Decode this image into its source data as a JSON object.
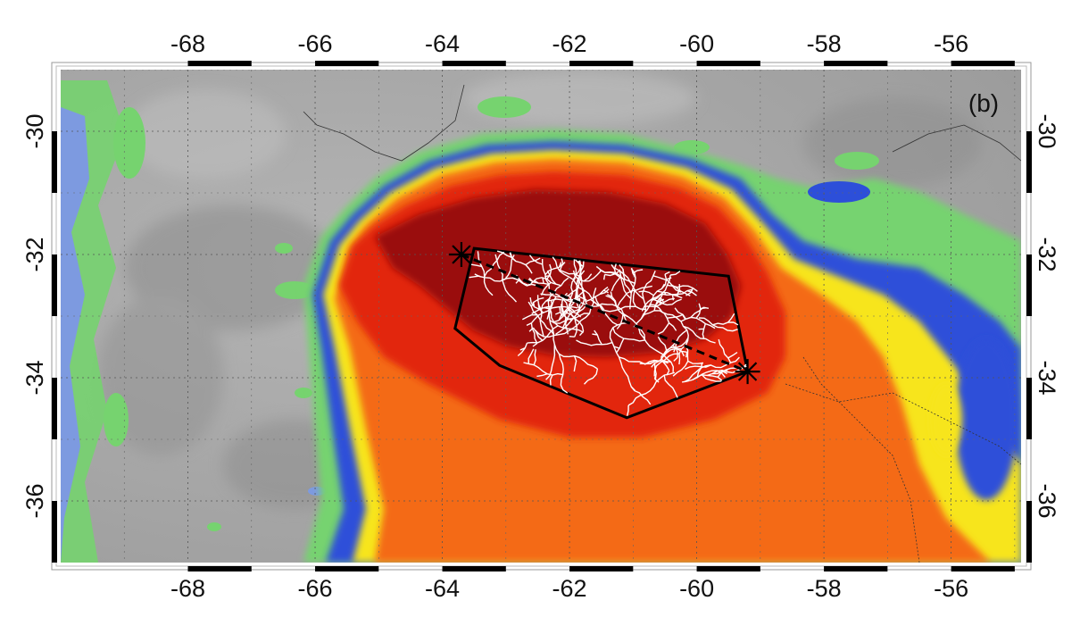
{
  "map": {
    "panel_label": "(b)",
    "lon_ticks": [
      "-68",
      "-66",
      "-64",
      "-62",
      "-60",
      "-58",
      "-56"
    ],
    "lat_ticks": [
      "-30",
      "-32",
      "-34",
      "-36"
    ],
    "lon_range": [
      -70.0,
      -54.9
    ],
    "lat_range": [
      -37.0,
      -29.0
    ],
    "colors": {
      "background_gray": "#a9a9a9",
      "cloud_light_green": "#76d36f",
      "cloud_blue": "#2d4fd9",
      "cloud_yellow": "#f7e51b",
      "cloud_orange": "#f46a12",
      "cloud_red": "#e2260f",
      "cloud_dark_red": "#9a0b08",
      "flash_channels": "#ffffff",
      "outline": "#000000"
    },
    "flash_endpoints": [
      {
        "lon": -63.7,
        "lat": -32.0
      },
      {
        "lon": -59.2,
        "lat": -33.9
      }
    ],
    "flash_polygon": [
      {
        "lon": -63.5,
        "lat": -31.9
      },
      {
        "lon": -59.5,
        "lat": -32.35
      },
      {
        "lon": -59.2,
        "lat": -33.9
      },
      {
        "lon": -61.1,
        "lat": -34.65
      },
      {
        "lon": -63.1,
        "lat": -33.8
      },
      {
        "lon": -63.8,
        "lat": -33.2
      }
    ]
  }
}
